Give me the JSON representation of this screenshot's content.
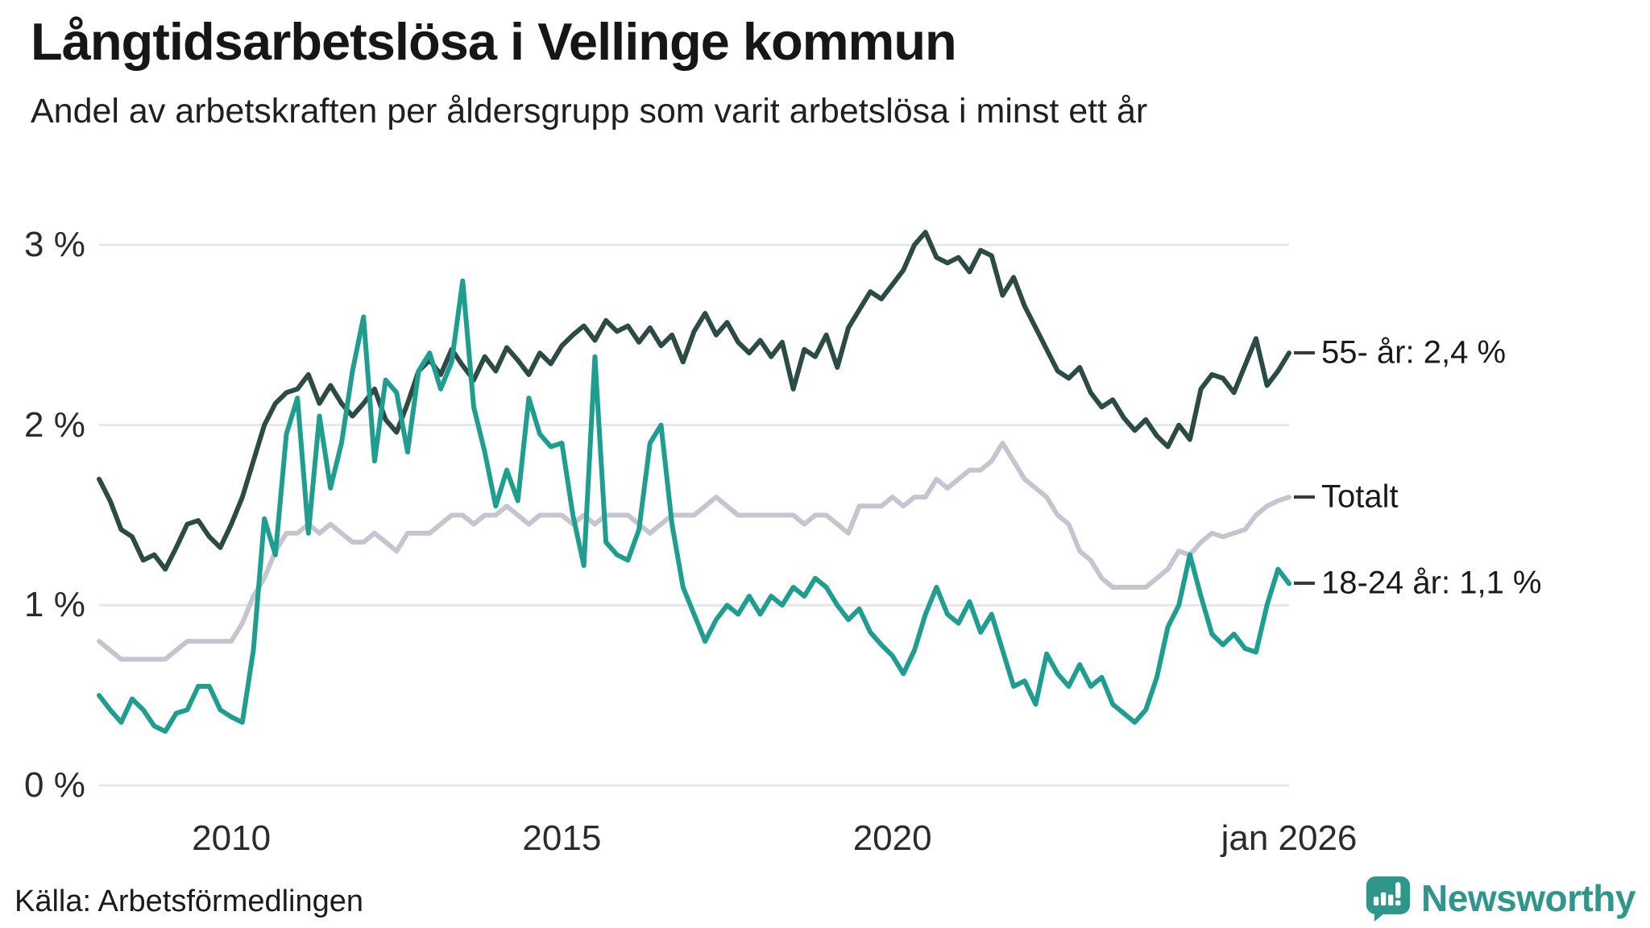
{
  "header": {
    "title": "Långtidsarbetslösa i Vellinge kommun",
    "subtitle": "Andel av arbetskraften per åldersgrupp som varit arbetslösa i minst ett år"
  },
  "footer": {
    "source": "Källa: Arbetsförmedlingen",
    "brand": "Newsworthy"
  },
  "colors": {
    "line_55": "#2c4b44",
    "line_total": "#c6c4cf",
    "line_18_24": "#1f9e90",
    "grid": "#e7e6ea",
    "end_tick": "#3a3a3a",
    "brand": "#2f968c"
  },
  "chart_data": {
    "type": "line",
    "title": "Långtidsarbetslösa i Vellinge kommun",
    "subtitle": "Andel av arbetskraften per åldersgrupp som varit arbetslösa i minst ett år",
    "x_start": "2008-01",
    "x_end": "2026-01",
    "interval_months": 2,
    "ylim": [
      0,
      3.2
    ],
    "grid": true,
    "legend_position": "right-end-labels",
    "y_ticks": [
      {
        "value": 3,
        "label": "3 %"
      },
      {
        "value": 2,
        "label": "2 %"
      },
      {
        "value": 1,
        "label": "1 %"
      },
      {
        "value": 0,
        "label": "0 %"
      }
    ],
    "x_ticks": [
      {
        "month_index": 24,
        "label": "2010"
      },
      {
        "month_index": 84,
        "label": "2015"
      },
      {
        "month_index": 144,
        "label": "2020"
      },
      {
        "month_index": 216,
        "label": "jan 2026"
      }
    ],
    "series": [
      {
        "name": "Totalt",
        "end_label": "Totalt",
        "color": "#c6c4cf",
        "last_value": 1.6,
        "values": [
          0.8,
          0.75,
          0.7,
          0.7,
          0.7,
          0.7,
          0.7,
          0.75,
          0.8,
          0.8,
          0.8,
          0.8,
          0.8,
          0.9,
          1.05,
          1.15,
          1.3,
          1.4,
          1.4,
          1.45,
          1.4,
          1.45,
          1.4,
          1.35,
          1.35,
          1.4,
          1.35,
          1.3,
          1.4,
          1.4,
          1.4,
          1.45,
          1.5,
          1.5,
          1.45,
          1.5,
          1.5,
          1.55,
          1.5,
          1.45,
          1.5,
          1.5,
          1.5,
          1.45,
          1.5,
          1.45,
          1.5,
          1.5,
          1.5,
          1.45,
          1.4,
          1.45,
          1.5,
          1.5,
          1.5,
          1.55,
          1.6,
          1.55,
          1.5,
          1.5,
          1.5,
          1.5,
          1.5,
          1.5,
          1.45,
          1.5,
          1.5,
          1.45,
          1.4,
          1.55,
          1.55,
          1.55,
          1.6,
          1.55,
          1.6,
          1.6,
          1.7,
          1.65,
          1.7,
          1.75,
          1.75,
          1.8,
          1.9,
          1.8,
          1.7,
          1.65,
          1.6,
          1.5,
          1.45,
          1.3,
          1.25,
          1.15,
          1.1,
          1.1,
          1.1,
          1.1,
          1.15,
          1.2,
          1.3,
          1.28,
          1.35,
          1.4,
          1.38,
          1.4,
          1.42,
          1.5,
          1.55,
          1.58,
          1.6
        ]
      },
      {
        "name": "55- år",
        "end_label": "55- år: 2,4 %",
        "color": "#2c4b44",
        "last_value": 2.4,
        "values": [
          1.7,
          1.58,
          1.42,
          1.38,
          1.25,
          1.28,
          1.2,
          1.32,
          1.45,
          1.47,
          1.38,
          1.32,
          1.45,
          1.6,
          1.8,
          2.0,
          2.12,
          2.18,
          2.2,
          2.28,
          2.12,
          2.22,
          2.12,
          2.05,
          2.12,
          2.2,
          2.03,
          1.96,
          2.12,
          2.3,
          2.36,
          2.28,
          2.42,
          2.33,
          2.25,
          2.38,
          2.3,
          2.43,
          2.36,
          2.28,
          2.4,
          2.34,
          2.44,
          2.5,
          2.55,
          2.47,
          2.58,
          2.52,
          2.55,
          2.46,
          2.54,
          2.44,
          2.5,
          2.35,
          2.52,
          2.62,
          2.5,
          2.57,
          2.46,
          2.4,
          2.47,
          2.38,
          2.46,
          2.2,
          2.42,
          2.38,
          2.5,
          2.32,
          2.54,
          2.64,
          2.74,
          2.7,
          2.78,
          2.86,
          3.0,
          3.07,
          2.93,
          2.9,
          2.93,
          2.85,
          2.97,
          2.94,
          2.72,
          2.82,
          2.66,
          2.54,
          2.42,
          2.3,
          2.26,
          2.32,
          2.18,
          2.1,
          2.14,
          2.04,
          1.97,
          2.03,
          1.94,
          1.88,
          2.0,
          1.92,
          2.2,
          2.28,
          2.26,
          2.18,
          2.33,
          2.48,
          2.22,
          2.3,
          2.4
        ]
      },
      {
        "name": "18-24 år",
        "end_label": "18-24 år: 1,1 %",
        "color": "#1f9e90",
        "last_value": 1.1,
        "values": [
          0.5,
          0.42,
          0.35,
          0.48,
          0.42,
          0.33,
          0.3,
          0.4,
          0.42,
          0.55,
          0.55,
          0.42,
          0.38,
          0.35,
          0.75,
          1.48,
          1.28,
          1.95,
          2.15,
          1.4,
          2.05,
          1.65,
          1.9,
          2.3,
          2.6,
          1.8,
          2.25,
          2.18,
          1.85,
          2.3,
          2.4,
          2.2,
          2.35,
          2.8,
          2.1,
          1.85,
          1.55,
          1.75,
          1.58,
          2.15,
          1.95,
          1.88,
          1.9,
          1.5,
          1.22,
          2.38,
          1.35,
          1.28,
          1.25,
          1.42,
          1.9,
          2.0,
          1.45,
          1.1,
          0.95,
          0.8,
          0.92,
          1.0,
          0.95,
          1.05,
          0.95,
          1.05,
          1.0,
          1.1,
          1.05,
          1.15,
          1.1,
          1.0,
          0.92,
          0.98,
          0.85,
          0.78,
          0.72,
          0.62,
          0.75,
          0.95,
          1.1,
          0.95,
          0.9,
          1.02,
          0.85,
          0.95,
          0.75,
          0.55,
          0.58,
          0.45,
          0.73,
          0.62,
          0.55,
          0.67,
          0.55,
          0.6,
          0.45,
          0.4,
          0.35,
          0.42,
          0.6,
          0.88,
          1.0,
          1.28,
          1.05,
          0.84,
          0.78,
          0.84,
          0.76,
          0.74,
          1.0,
          1.2,
          1.12
        ]
      }
    ]
  }
}
